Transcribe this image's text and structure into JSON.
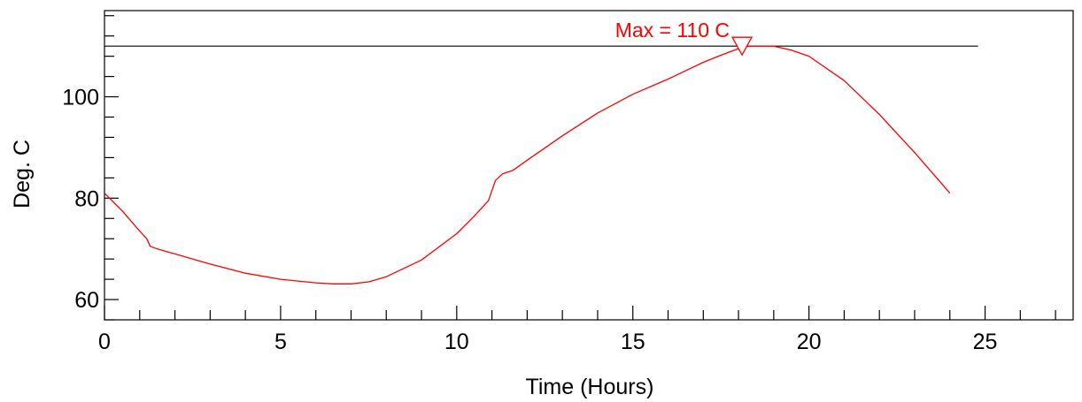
{
  "chart_data": {
    "type": "line",
    "title": "",
    "xlabel": "Time (Hours)",
    "ylabel": "Deg. C",
    "xlim": [
      0,
      27.5
    ],
    "ylim": [
      56,
      117
    ],
    "x_ticks": [
      0,
      5,
      10,
      15,
      20,
      25
    ],
    "x_minor_step": 1,
    "y_ticks": [
      60,
      80,
      100
    ],
    "y_minor_step": 4,
    "grid": false,
    "legend": "none",
    "colors": {
      "series": "#ff0000",
      "threshold": "#000000",
      "axes": "#000000",
      "annotation": "#ff0000"
    },
    "series": [
      {
        "color": "#ff0000",
        "x": [
          0,
          0.5,
          1.0,
          1.2,
          1.3,
          1.5,
          2,
          3,
          4,
          5,
          6,
          6.5,
          7,
          7.5,
          8,
          9,
          10,
          10.5,
          10.9,
          11.0,
          11.1,
          11.3,
          11.6,
          12,
          13,
          14,
          15,
          16,
          17,
          17.5,
          18,
          18.3,
          19,
          19.5,
          20,
          21,
          22,
          23,
          24
        ],
        "y": [
          81,
          77.5,
          73.5,
          72,
          70.5,
          70,
          69,
          67,
          65.2,
          64,
          63.3,
          63.1,
          63.1,
          63.5,
          64.5,
          67.8,
          73,
          76.5,
          79.5,
          81.5,
          83.5,
          84.8,
          85.5,
          87.5,
          92.3,
          96.8,
          100.5,
          103.5,
          106.8,
          108.2,
          109.5,
          110,
          110,
          109.2,
          108,
          103.2,
          96.5,
          89,
          81
        ]
      }
    ],
    "reference_lines": [
      {
        "y": 110,
        "x_start": 0,
        "x_end": 24.8,
        "color": "#000000"
      }
    ],
    "annotations": [
      {
        "text": "Max = 110 C",
        "x": 18.1,
        "y": 110,
        "marker": "inverted-triangle",
        "color": "#ff0000"
      }
    ]
  }
}
